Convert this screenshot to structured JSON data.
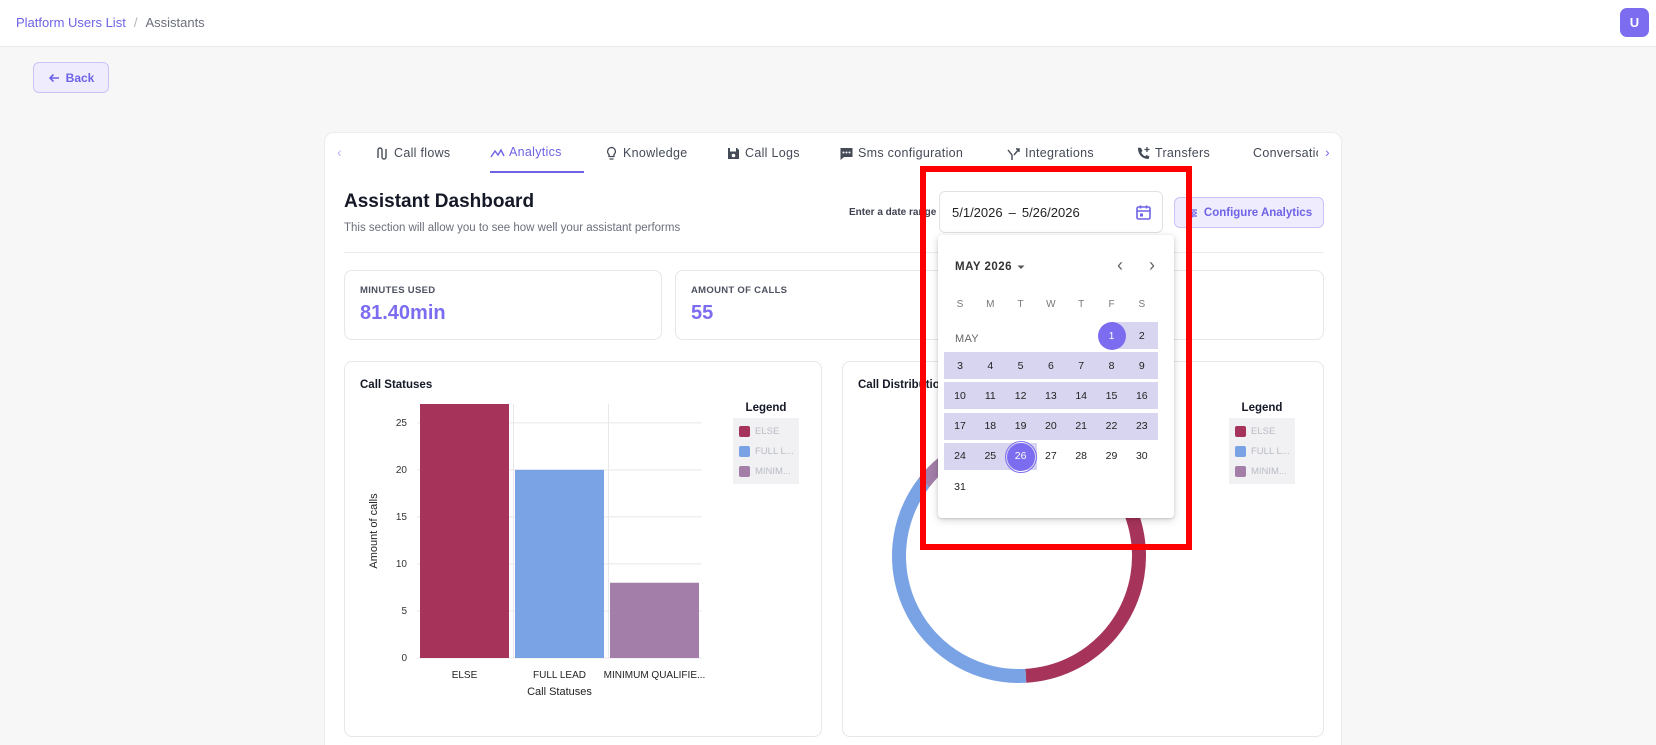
{
  "breadcrumb": {
    "parent": "Platform Users List",
    "current": "Assistants"
  },
  "user": {
    "initial": "U"
  },
  "back_label": "Back",
  "tabs": [
    {
      "label": "Call flows",
      "icon": "flow-icon"
    },
    {
      "label": "Analytics",
      "icon": "analytics-icon",
      "active": true
    },
    {
      "label": "Knowledge",
      "icon": "lightbulb-icon"
    },
    {
      "label": "Call Logs",
      "icon": "save-icon"
    },
    {
      "label": "Sms configuration",
      "icon": "sms-icon"
    },
    {
      "label": "Integrations",
      "icon": "integrations-icon"
    },
    {
      "label": "Transfers",
      "icon": "phone-transfer-icon"
    },
    {
      "label": "Conversations",
      "icon": "save-icon"
    }
  ],
  "dashboard": {
    "title": "Assistant Dashboard",
    "subtitle": "This section will allow you to see how well your assistant performs",
    "range_label": "Enter a date range",
    "date_start": "5/1/2026",
    "date_sep": "–",
    "date_end": "5/26/2026",
    "configure_label": "Configure Analytics"
  },
  "stats": [
    {
      "label": "MINUTES USED",
      "value": "81.40min"
    },
    {
      "label": "AMOUNT OF CALLS",
      "value": "55"
    }
  ],
  "calendar": {
    "header": "MAY 2026",
    "month_label": "MAY",
    "weekdays": [
      "S",
      "M",
      "T",
      "W",
      "T",
      "F",
      "S"
    ],
    "range_start": 1,
    "range_end": 26,
    "today": 26
  },
  "cards": {
    "statuses_title": "Call Statuses",
    "distribution_title": "Call Distribution"
  },
  "legend": {
    "title": "Legend",
    "items": [
      {
        "label": "ELSE",
        "color": "#a6345a"
      },
      {
        "label": "FULL L...",
        "color": "#7aa3e5"
      },
      {
        "label": "MINIM...",
        "color": "#a27ea8"
      }
    ]
  },
  "chart_data": [
    {
      "type": "bar",
      "title": "Call Statuses",
      "categories": [
        "ELSE",
        "FULL LEAD",
        "MINIMUM QUALIFIE..."
      ],
      "values": [
        27,
        20,
        8
      ],
      "colors": [
        "#a6345a",
        "#7aa3e5",
        "#a27ea8"
      ],
      "xlabel": "Call Statuses",
      "ylabel": "Amount of calls",
      "ylim": [
        0,
        27
      ],
      "yticks": [
        0,
        5,
        10,
        15,
        20,
        25
      ],
      "grid": true
    },
    {
      "type": "pie",
      "title": "Call Distribution",
      "donut": true,
      "categories": [
        "ELSE",
        "FULL LEAD",
        "MINIMUM QUALIFIED"
      ],
      "values": [
        27,
        20,
        8
      ],
      "colors": [
        "#a6345a",
        "#7aa3e5",
        "#a27ea8"
      ]
    }
  ]
}
